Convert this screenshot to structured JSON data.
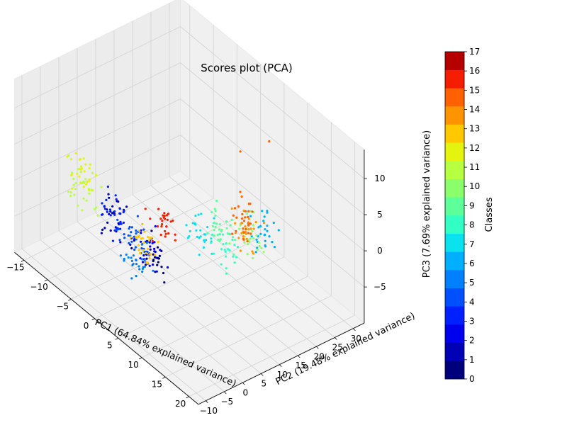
{
  "chart_data": {
    "type": "scatter",
    "projection": "3d",
    "title": "Scores plot (PCA)",
    "xlabel": "PC1 (64.84% explained variance)",
    "ylabel": "PC2 (19.48% explained variance)",
    "zlabel": "PC3 (7.69% explained variance)",
    "xlim": [
      -17,
      22
    ],
    "ylim": [
      -12,
      33
    ],
    "zlim": [
      -10,
      14
    ],
    "x_ticks": [
      "−15",
      "−10",
      "−5",
      "0",
      "5",
      "10",
      "15",
      "20"
    ],
    "x_tick_values": [
      -15,
      -10,
      -5,
      0,
      5,
      10,
      15,
      20
    ],
    "y_ticks": [
      "−10",
      "−5",
      "0",
      "5",
      "10",
      "15",
      "20",
      "25",
      "30"
    ],
    "y_tick_values": [
      -10,
      -5,
      0,
      5,
      10,
      15,
      20,
      25,
      30
    ],
    "z_ticks": [
      "−5",
      "0",
      "5",
      "10"
    ],
    "z_tick_values": [
      -5,
      0,
      5,
      10
    ],
    "grid": true,
    "colorbar": {
      "label": "Classes",
      "ticks": [
        "0",
        "1",
        "2",
        "3",
        "4",
        "5",
        "6",
        "7",
        "8",
        "9",
        "10",
        "11",
        "12",
        "13",
        "14",
        "15",
        "16",
        "17"
      ],
      "colors": [
        "#00007f",
        "#0000b6",
        "#0000ee",
        "#0020ff",
        "#0050ff",
        "#0080ff",
        "#00b0ff",
        "#0be2f0",
        "#32ffc4",
        "#5cff9a",
        "#8bff6b",
        "#b6ff41",
        "#e4f40e",
        "#ffc800",
        "#ff9400",
        "#ff6000",
        "#f41d00",
        "#b60000"
      ],
      "colormap": "jet"
    },
    "classes": [
      {
        "class": 0,
        "center": [
          5,
          -3,
          -1
        ]
      },
      {
        "class": 1,
        "center": [
          -7,
          2,
          -3
        ]
      },
      {
        "class": 2,
        "center": [
          2,
          0,
          -2
        ]
      },
      {
        "class": 3,
        "center": [
          -8,
          4,
          -4
        ]
      },
      {
        "class": 4,
        "center": [
          -5,
          5,
          -6
        ]
      },
      {
        "class": 5,
        "center": [
          -3,
          3,
          -7
        ]
      },
      {
        "class": 6,
        "center": [
          7,
          25,
          -4
        ]
      },
      {
        "class": 7,
        "center": [
          6,
          8,
          0
        ]
      },
      {
        "class": 8,
        "center": [
          10,
          10,
          0
        ]
      },
      {
        "class": 9,
        "center": [
          8,
          12,
          1
        ]
      },
      {
        "class": 10,
        "center": [
          12,
          14,
          2
        ]
      },
      {
        "class": 11,
        "center": [
          -10,
          -2,
          0
        ]
      },
      {
        "class": 12,
        "center": [
          -12,
          0,
          1
        ]
      },
      {
        "class": 13,
        "center": [
          -3,
          5,
          -5
        ]
      },
      {
        "class": 14,
        "center": [
          11,
          15,
          1
        ]
      },
      {
        "class": 15,
        "center": [
          5,
          22,
          -2
        ]
      },
      {
        "class": 16,
        "center": [
          4,
          2,
          2
        ]
      }
    ],
    "outliers": [
      {
        "x": 12,
        "y": 20,
        "z": 13,
        "class": 15
      },
      {
        "x": 9,
        "y": 16,
        "z": 11,
        "class": 15
      }
    ]
  }
}
